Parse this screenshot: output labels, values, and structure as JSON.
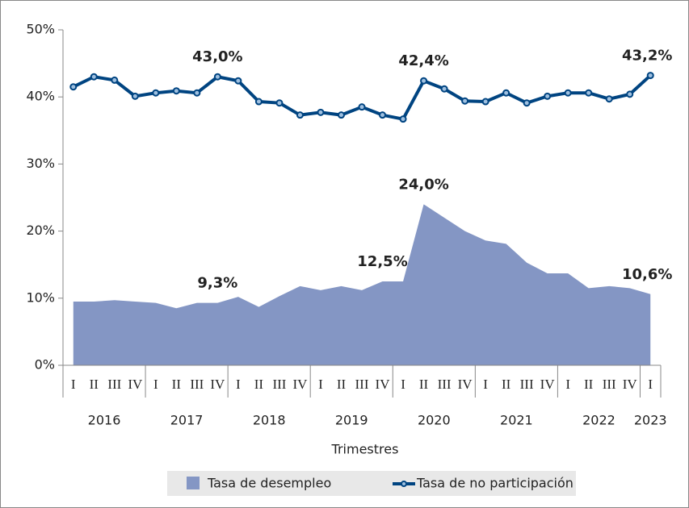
{
  "chart_data": {
    "type": "area-line",
    "x_label": "Trimestres",
    "categories": [
      "I",
      "II",
      "III",
      "IV",
      "I",
      "II",
      "III",
      "IV",
      "I",
      "II",
      "III",
      "IV",
      "I",
      "II",
      "III",
      "IV",
      "I",
      "II",
      "III",
      "IV",
      "I",
      "II",
      "III",
      "IV",
      "I",
      "II",
      "III",
      "IV",
      "I"
    ],
    "groups": [
      "2016",
      "2017",
      "2018",
      "2019",
      "2020",
      "2021",
      "2022",
      "2023"
    ],
    "ylim": [
      0,
      50
    ],
    "yticks": [
      {
        "value": 0,
        "label": "0%"
      },
      {
        "value": 10,
        "label": "10%"
      },
      {
        "value": 20,
        "label": "20%"
      },
      {
        "value": 30,
        "label": "30%"
      },
      {
        "value": 40,
        "label": "40%"
      },
      {
        "value": 50,
        "label": "50%"
      }
    ],
    "series": [
      {
        "name": "Tasa de desempleo",
        "kind": "area",
        "color": "#8496c4",
        "values": [
          9.5,
          9.5,
          9.7,
          9.5,
          9.3,
          8.5,
          9.3,
          9.3,
          10.2,
          8.7,
          10.3,
          11.8,
          11.2,
          11.8,
          11.2,
          12.5,
          12.5,
          24.0,
          22.0,
          20.0,
          18.6,
          18.1,
          15.3,
          13.7,
          13.7,
          11.5,
          11.8,
          11.5,
          10.6
        ],
        "value_labels": [
          null,
          null,
          null,
          null,
          null,
          null,
          null,
          "9,3%",
          null,
          null,
          null,
          null,
          null,
          null,
          null,
          "12,5%",
          null,
          "24,0%",
          null,
          null,
          null,
          null,
          null,
          null,
          null,
          null,
          null,
          null,
          "10,6%"
        ]
      },
      {
        "name": "Tasa de no participación",
        "kind": "line",
        "color": "#004481",
        "values": [
          41.5,
          43.0,
          42.5,
          40.1,
          40.6,
          40.9,
          40.6,
          43.0,
          42.4,
          39.3,
          39.1,
          37.3,
          37.7,
          37.3,
          38.5,
          37.3,
          36.7,
          42.4,
          41.2,
          39.4,
          39.3,
          40.6,
          39.1,
          40.1,
          40.6,
          40.6,
          39.7,
          40.4,
          43.2
        ],
        "value_labels": [
          null,
          null,
          null,
          null,
          null,
          null,
          null,
          "43,0%",
          null,
          null,
          null,
          null,
          null,
          null,
          null,
          null,
          null,
          "42,4%",
          null,
          null,
          null,
          null,
          null,
          null,
          null,
          null,
          null,
          null,
          "43,2%"
        ]
      }
    ]
  }
}
